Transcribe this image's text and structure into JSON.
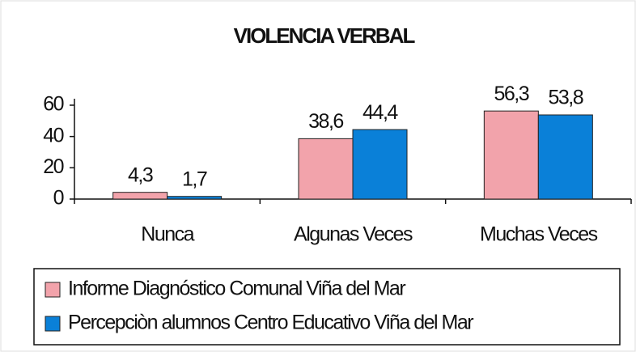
{
  "chart_data": {
    "type": "bar",
    "title": "VIOLENCIA VERBAL",
    "categories": [
      "Nunca",
      "Algunas Veces",
      "Muchas Veces"
    ],
    "series": [
      {
        "name": "Informe Diagnóstico Comunal Viña del Mar",
        "color": "#f2a3ab",
        "values": [
          4.3,
          38.6,
          56.3
        ],
        "value_labels": [
          "4,3",
          "38,6",
          "56,3"
        ]
      },
      {
        "name": "Percepciòn alumnos Centro Educativo Viña del Mar",
        "color": "#0a80d8",
        "values": [
          1.7,
          44.4,
          53.8
        ],
        "value_labels": [
          "1,7",
          "44,4",
          "53,8"
        ]
      }
    ],
    "ylim": [
      0,
      60
    ],
    "yticks": [
      0,
      20,
      40,
      60
    ],
    "grid": false
  }
}
